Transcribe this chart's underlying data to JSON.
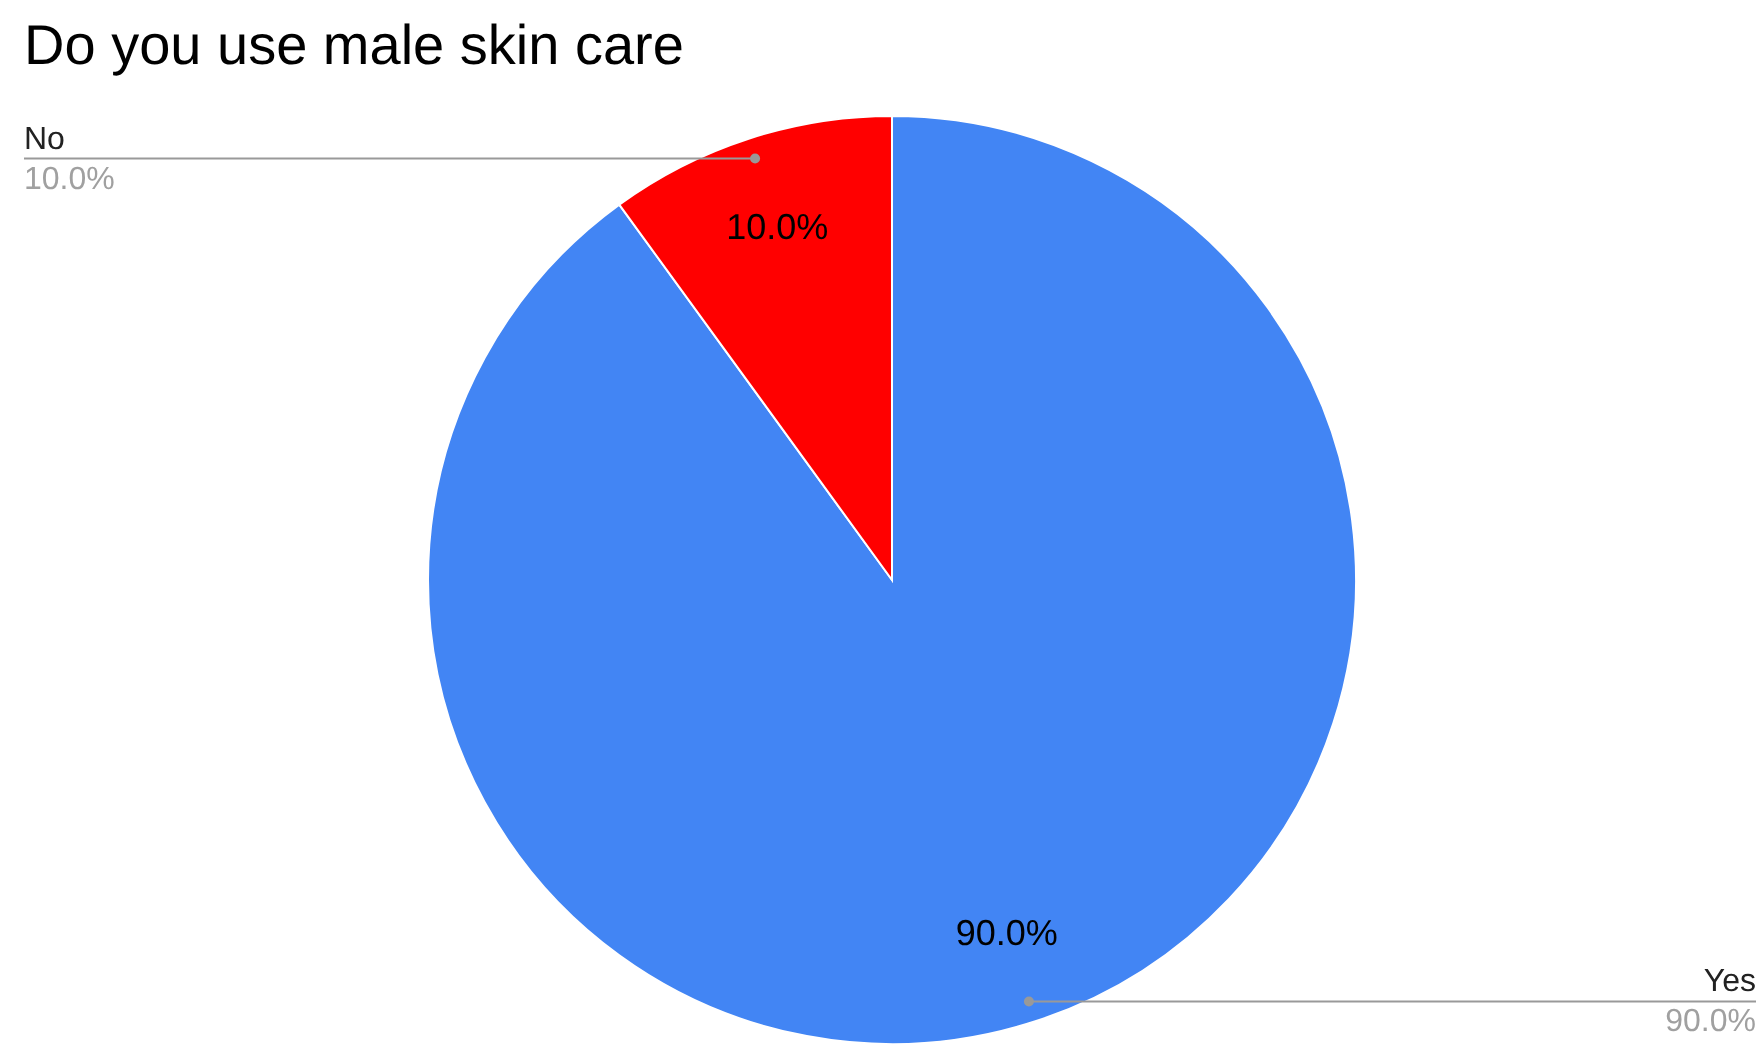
{
  "chart_data": {
    "type": "pie",
    "title": "Do you use male skin care",
    "categories": [
      "Yes",
      "No"
    ],
    "values": [
      90,
      10
    ],
    "colors": [
      "#4285f4",
      "#ff0000"
    ],
    "value_labels": [
      "90.0%",
      "10.0%"
    ]
  }
}
